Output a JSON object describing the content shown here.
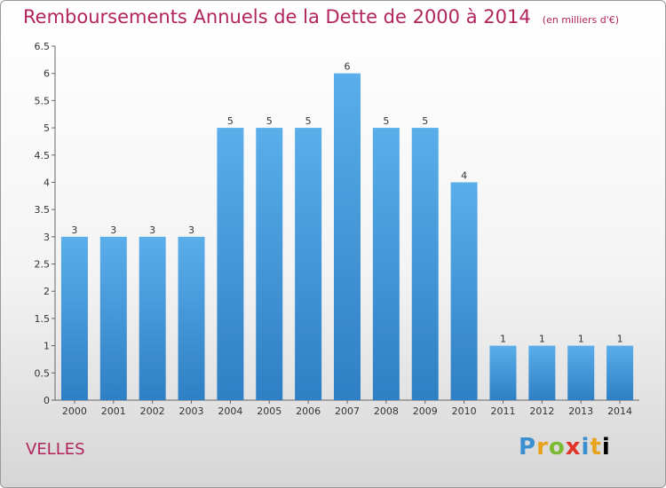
{
  "chart_data": {
    "type": "bar",
    "title": "Remboursements Annuels de la Dette de 2000 à 2014",
    "subtitle": "(en milliers d'€)",
    "categories": [
      "2000",
      "2001",
      "2002",
      "2003",
      "2004",
      "2005",
      "2006",
      "2007",
      "2008",
      "2009",
      "2010",
      "2011",
      "2012",
      "2013",
      "2014"
    ],
    "values": [
      3,
      3,
      3,
      3,
      5,
      5,
      5,
      6,
      5,
      5,
      4,
      1,
      1,
      1,
      1
    ],
    "ylim": [
      0,
      6.5
    ],
    "yticks": [
      0,
      0.5,
      1,
      1.5,
      2,
      2.5,
      3,
      3.5,
      4,
      4.5,
      5,
      5.5,
      6,
      6.5
    ],
    "grid": false,
    "bar_color": "#4a9fe0"
  },
  "footer": {
    "commune": "VELLES",
    "brand": "Proxiti"
  }
}
